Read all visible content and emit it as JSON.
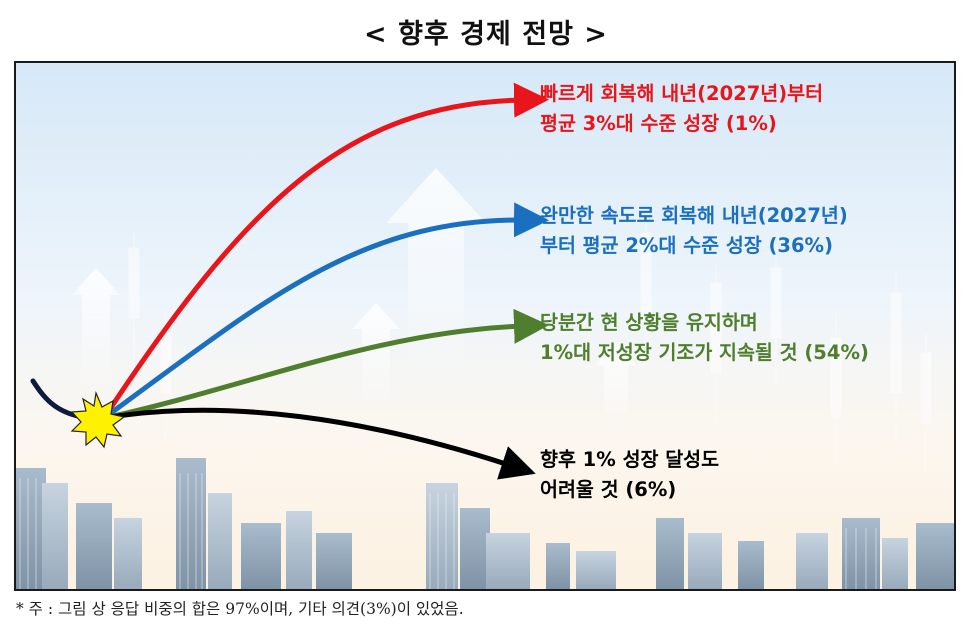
{
  "title": "< 향후 경제 전망 >",
  "colors": {
    "fast": "#e8151b",
    "moderate": "#1b6fbf",
    "maintain": "#4e7e2e",
    "hard": "#000000"
  },
  "scenarios": [
    {
      "key": "fast",
      "line1": "빠르게 회복해 내년(2027년)부터",
      "line2": "평균 3%대 수준 성장 (1%)",
      "share": 1
    },
    {
      "key": "moderate",
      "line1": "완만한 속도로 회복해 내년(2027년)",
      "line2": "부터 평균 2%대 수준 성장 (36%)",
      "share": 36
    },
    {
      "key": "maintain",
      "line1": "당분간 현 상황을 유지하며",
      "line2": "1%대 저성장 기조가 지속될 것 (54%)",
      "share": 54
    },
    {
      "key": "hard",
      "line1": "향후 1% 성장 달성도",
      "line2": "어려울 것 (6%)",
      "share": 6
    }
  ],
  "footnote": "* 주 : 그림 상 응답 비중의 합은 97%이며, 기타 의견(3%)이 있었음."
}
